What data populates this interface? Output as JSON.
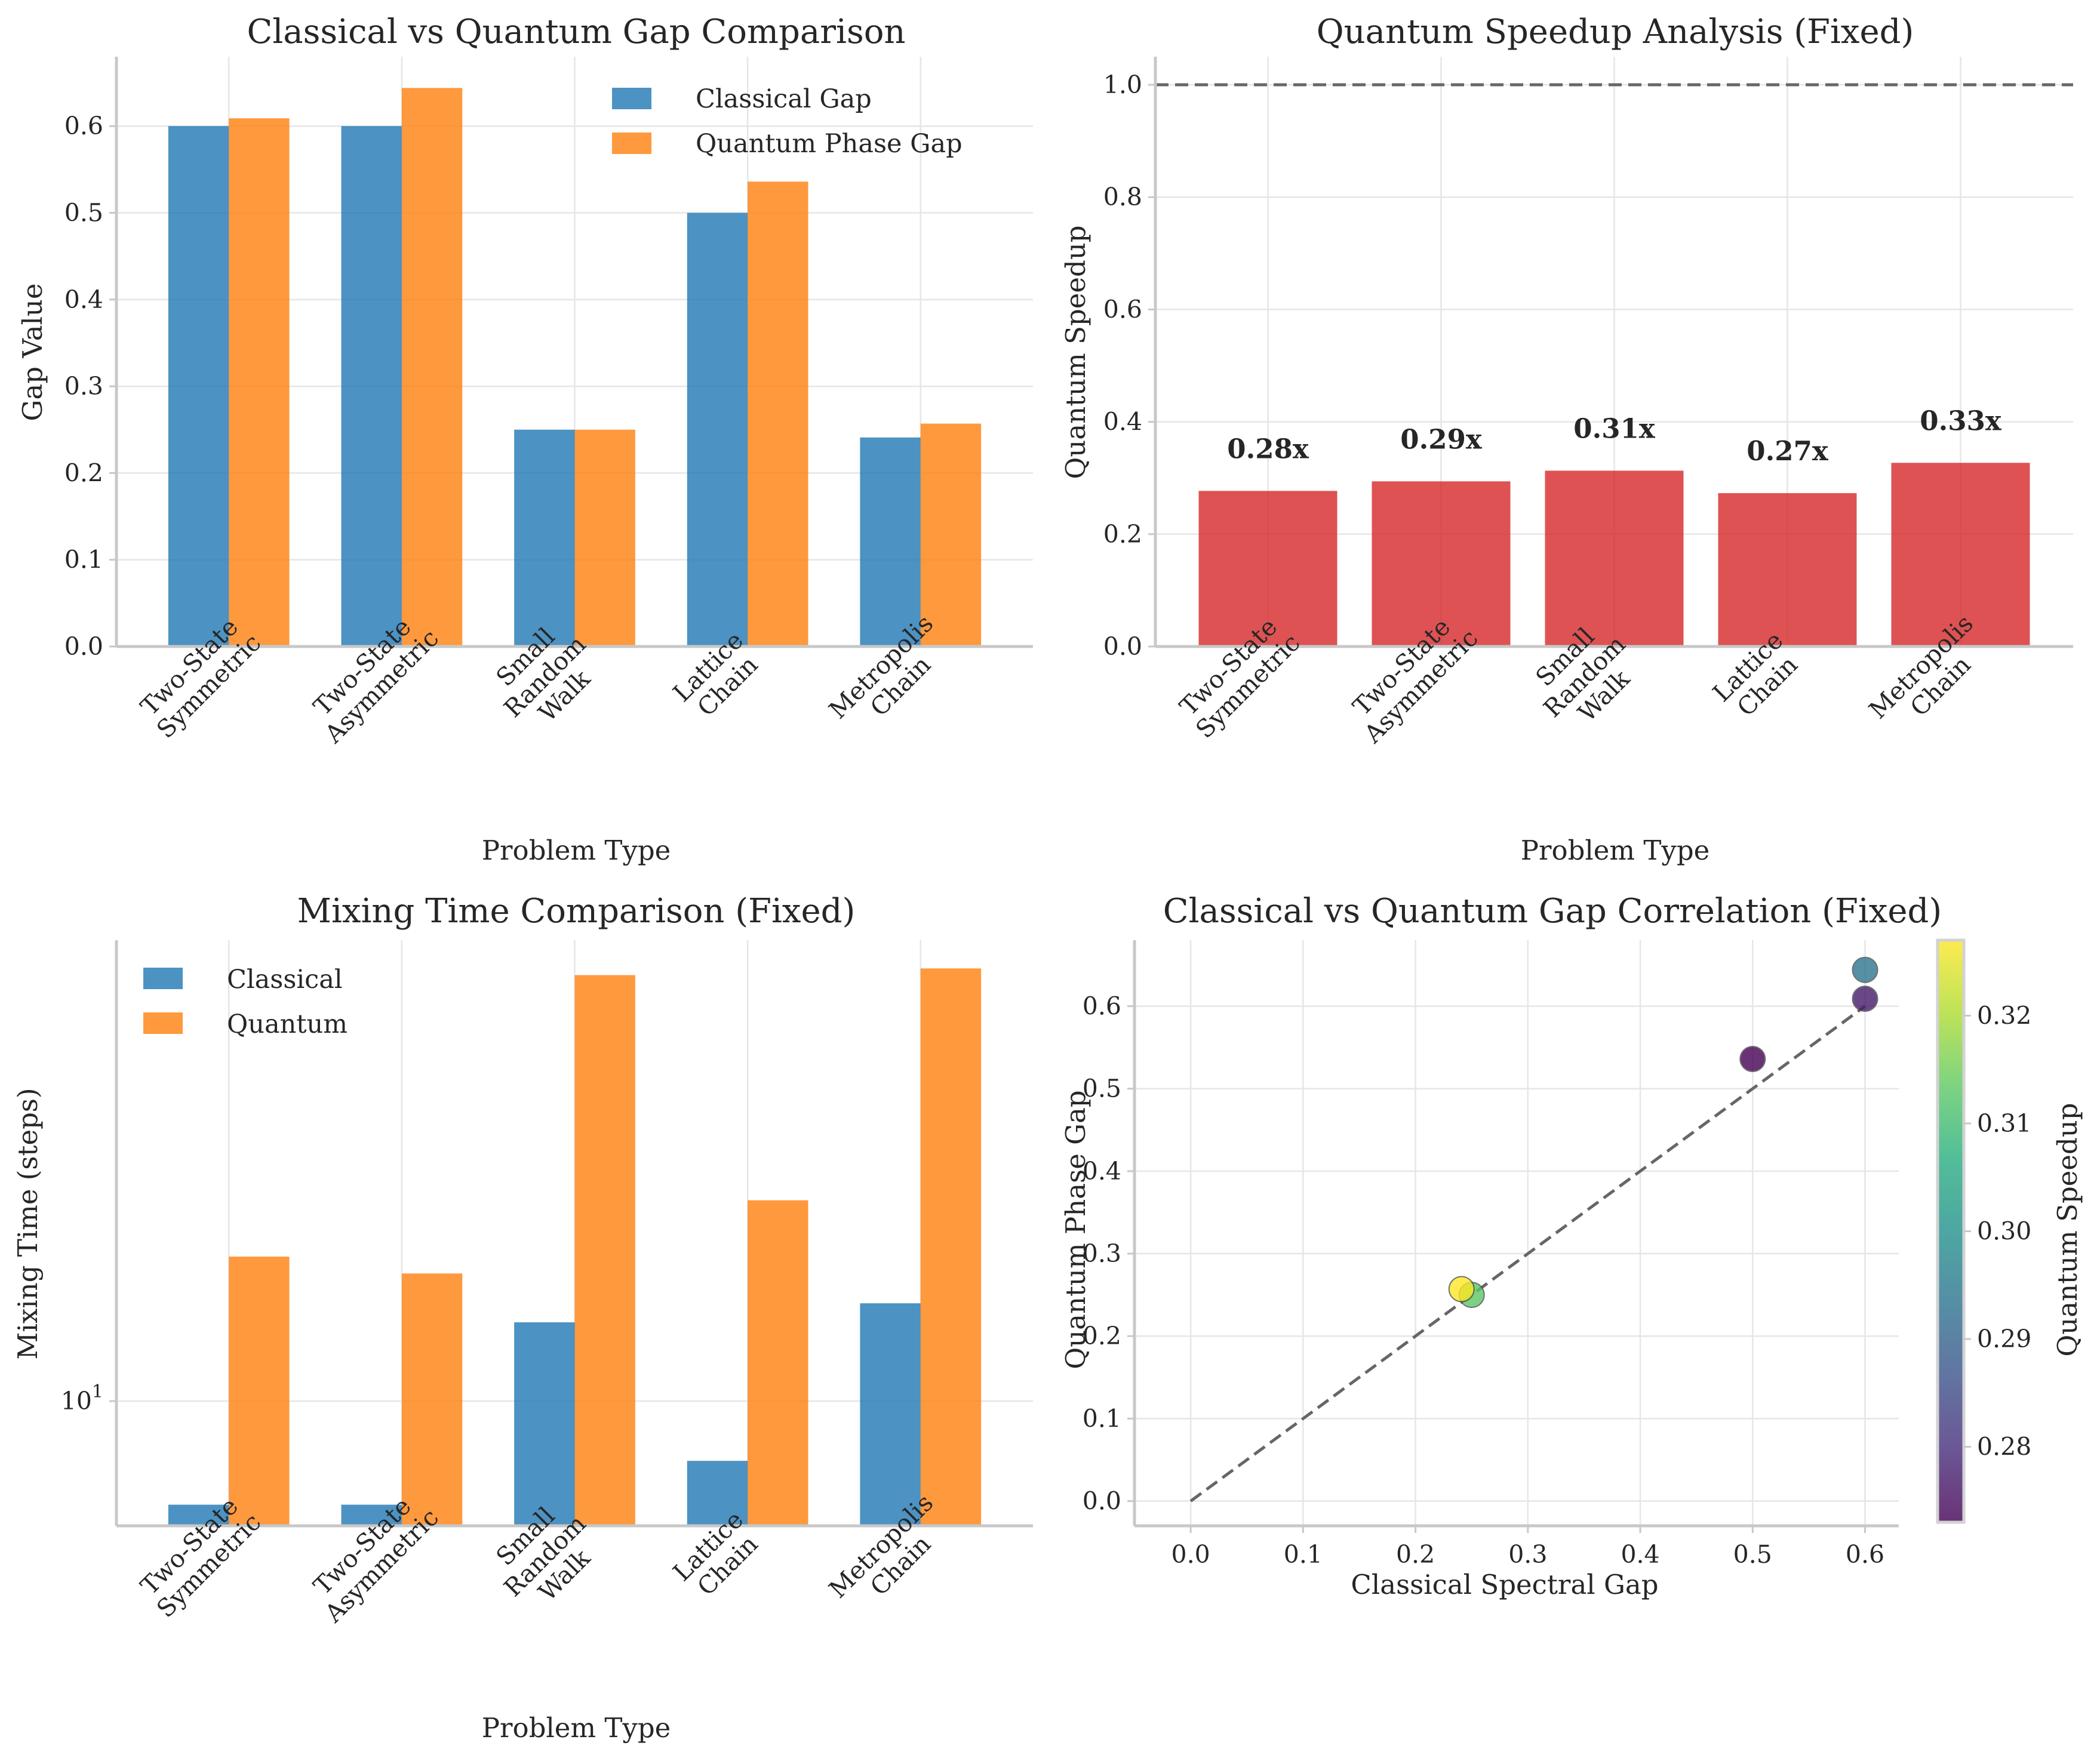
{
  "colors": {
    "classical": "#1f77b4",
    "quantum": "#ff7f0e",
    "speedup": "#d62728",
    "reference_line": "#666666",
    "colormap": "viridis"
  },
  "chart_data": [
    {
      "id": "gap",
      "type": "bar",
      "title": "Classical vs Quantum Gap Comparison",
      "xlabel": "Problem Type",
      "ylabel": "Gap Value",
      "categories": [
        [
          "Two-State",
          "Symmetric"
        ],
        [
          "Two-State",
          "Asymmetric"
        ],
        [
          "Small",
          "Random",
          "Walk"
        ],
        [
          "Lattice",
          "Chain"
        ],
        [
          "Metropolis",
          "Chain"
        ]
      ],
      "series": [
        {
          "name": "Classical Gap",
          "color": "#1f77b4",
          "values": [
            0.6,
            0.6,
            0.25,
            0.5,
            0.241
          ]
        },
        {
          "name": "Quantum Phase Gap",
          "color": "#ff7f0e",
          "values": [
            0.609,
            0.644,
            0.25,
            0.536,
            0.257
          ]
        }
      ],
      "ylim": [
        0,
        0.68
      ],
      "yticks": [
        0.0,
        0.1,
        0.2,
        0.3,
        0.4,
        0.5,
        0.6
      ],
      "ytick_labels": [
        "0.0",
        "0.1",
        "0.2",
        "0.3",
        "0.4",
        "0.5",
        "0.6"
      ],
      "grid": true,
      "legend": "top-right"
    },
    {
      "id": "speedup",
      "type": "bar",
      "title": "Quantum Speedup Analysis (Fixed)",
      "xlabel": "Problem Type",
      "ylabel": "Quantum Speedup",
      "categories": [
        [
          "Two-State",
          "Symmetric"
        ],
        [
          "Two-State",
          "Asymmetric"
        ],
        [
          "Small",
          "Random",
          "Walk"
        ],
        [
          "Lattice",
          "Chain"
        ],
        [
          "Metropolis",
          "Chain"
        ]
      ],
      "values": [
        0.277,
        0.294,
        0.313,
        0.273,
        0.327
      ],
      "data_labels": [
        "0.28x",
        "0.29x",
        "0.31x",
        "0.27x",
        "0.33x"
      ],
      "reference_line": 1.0,
      "ylim": [
        0,
        1.05
      ],
      "yticks": [
        0.0,
        0.2,
        0.4,
        0.6,
        0.8,
        1.0
      ],
      "ytick_labels": [
        "0.0",
        "0.2",
        "0.4",
        "0.6",
        "0.8",
        "1.0"
      ],
      "grid": true
    },
    {
      "id": "mixing",
      "type": "bar",
      "title": "Mixing Time Comparison (Fixed)",
      "xlabel": "Problem Type",
      "ylabel": "Mixing Time (steps)",
      "yscale": "log",
      "categories": [
        [
          "Two-State",
          "Symmetric"
        ],
        [
          "Two-State",
          "Asymmetric"
        ],
        [
          "Small",
          "Random",
          "Walk"
        ],
        [
          "Lattice",
          "Chain"
        ],
        [
          "Metropolis",
          "Chain"
        ]
      ],
      "series": [
        {
          "name": "Classical",
          "color": "#1f77b4",
          "values": [
            7.7,
            7.7,
            12.2,
            8.6,
            12.8
          ]
        },
        {
          "name": "Quantum",
          "color": "#ff7f0e",
          "values": [
            14.4,
            13.8,
            29.3,
            16.6,
            29.8
          ]
        }
      ],
      "ylim": [
        7.3,
        32
      ],
      "ytick_labels": [
        {
          "base": "10",
          "exp": "1",
          "value": 10
        }
      ],
      "grid": true,
      "legend": "top-left"
    },
    {
      "id": "correlation",
      "type": "scatter",
      "title": "Classical vs Quantum Gap Correlation (Fixed)",
      "xlabel": "Classical Spectral Gap",
      "ylabel": "Quantum Phase Gap",
      "points": [
        {
          "x": 0.6,
          "y": 0.609,
          "c": 0.277
        },
        {
          "x": 0.6,
          "y": 0.644,
          "c": 0.294
        },
        {
          "x": 0.25,
          "y": 0.25,
          "c": 0.313
        },
        {
          "x": 0.5,
          "y": 0.536,
          "c": 0.273
        },
        {
          "x": 0.241,
          "y": 0.257,
          "c": 0.327
        }
      ],
      "diagonal": [
        [
          0,
          0
        ],
        [
          0.6,
          0.6
        ]
      ],
      "xlim": [
        -0.05,
        0.63
      ],
      "ylim": [
        -0.03,
        0.68
      ],
      "xticks": [
        0.0,
        0.1,
        0.2,
        0.3,
        0.4,
        0.5,
        0.6
      ],
      "xtick_labels": [
        "0.0",
        "0.1",
        "0.2",
        "0.3",
        "0.4",
        "0.5",
        "0.6"
      ],
      "yticks": [
        0.0,
        0.1,
        0.2,
        0.3,
        0.4,
        0.5,
        0.6
      ],
      "ytick_labels": [
        "0.0",
        "0.1",
        "0.2",
        "0.3",
        "0.4",
        "0.5",
        "0.6"
      ],
      "colorbar": {
        "label": "Quantum Speedup",
        "range": [
          0.273,
          0.327
        ],
        "ticks": [
          0.28,
          0.29,
          0.3,
          0.31,
          0.32
        ],
        "tick_labels": [
          "0.28",
          "0.29",
          "0.30",
          "0.31",
          "0.32"
        ]
      },
      "grid": true
    }
  ]
}
